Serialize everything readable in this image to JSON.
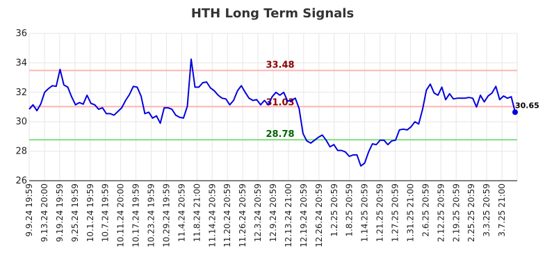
{
  "chart_data": {
    "type": "line",
    "title": "HTH Long Term Signals",
    "xlabel": "",
    "ylabel": "",
    "ylim": [
      26,
      36
    ],
    "yticks": [
      26,
      28,
      30,
      32,
      34,
      36
    ],
    "grid": true,
    "x_tick_labels": [
      "9.9.24 19:59",
      "9.13.24 20:00",
      "9.19.24 19:59",
      "9.25.24 19:59",
      "10.1.24 19:59",
      "10.7.24 19:59",
      "10.11.24 20:00",
      "10.17.24 19:59",
      "10.23.24 19:59",
      "10.29.24 19:59",
      "11.4.24 20:59",
      "11.8.24 21:00",
      "11.14.24 20:59",
      "11.20.24 20:59",
      "11.26.24 20:59",
      "12.3.24 20:59",
      "12.9.24 20:59",
      "12.13.24 21:00",
      "12.19.24 20:59",
      "12.26.24 20:59",
      "1.2.25 20:59",
      "1.8.25 20:59",
      "1.14.25 20:59",
      "1.21.25 20:59",
      "1.27.25 20:59",
      "1.31.25 21:00",
      "2.6.25 20:59",
      "2.12.25 20:59",
      "2.19.25 20:59",
      "2.25.25 20:59",
      "3.3.25 20:59",
      "3.7.25 21:00"
    ],
    "reference_lines": [
      {
        "value": 33.48,
        "label": "33.48",
        "color": "#ffb3b3",
        "label_color": "#8b0000"
      },
      {
        "value": 31.03,
        "label": "31.03",
        "color": "#ffb3b3",
        "label_color": "#8b0000"
      },
      {
        "value": 28.78,
        "label": "28.78",
        "color": "#80e080",
        "label_color": "#006400"
      }
    ],
    "series": [
      {
        "color": "#0000dd",
        "values": [
          30.85,
          31.15,
          30.75,
          31.2,
          32.0,
          32.25,
          32.45,
          32.4,
          33.55,
          32.5,
          32.35,
          31.7,
          31.15,
          31.3,
          31.2,
          31.8,
          31.25,
          31.15,
          30.85,
          30.95,
          30.55,
          30.55,
          30.45,
          30.7,
          30.95,
          31.45,
          31.85,
          32.4,
          32.35,
          31.75,
          30.55,
          30.65,
          30.25,
          30.4,
          29.9,
          30.95,
          30.95,
          30.85,
          30.45,
          30.3,
          30.25,
          31.05,
          34.25,
          32.35,
          32.35,
          32.65,
          32.7,
          32.3,
          32.1,
          31.8,
          31.6,
          31.55,
          31.15,
          31.45,
          32.1,
          32.45,
          32.0,
          31.6,
          31.45,
          31.5,
          31.15,
          31.45,
          31.15,
          31.7,
          32.0,
          31.8,
          32.0,
          31.4,
          31.45,
          31.6,
          30.9,
          29.2,
          28.7,
          28.55,
          28.75,
          28.95,
          29.1,
          28.75,
          28.3,
          28.45,
          28.05,
          28.05,
          27.95,
          27.65,
          27.75,
          27.75,
          27.0,
          27.2,
          27.95,
          28.5,
          28.45,
          28.75,
          28.75,
          28.45,
          28.7,
          28.75,
          29.45,
          29.5,
          29.45,
          29.65,
          30.0,
          29.85,
          30.85,
          32.15,
          32.55,
          31.95,
          31.8,
          32.35,
          31.5,
          31.9,
          31.55,
          31.6,
          31.6,
          31.6,
          31.65,
          31.6,
          31.0,
          31.8,
          31.35,
          31.75,
          31.95,
          32.4,
          31.5,
          31.75,
          31.6,
          31.7,
          30.65
        ]
      }
    ],
    "last_value_label": "30.65"
  }
}
